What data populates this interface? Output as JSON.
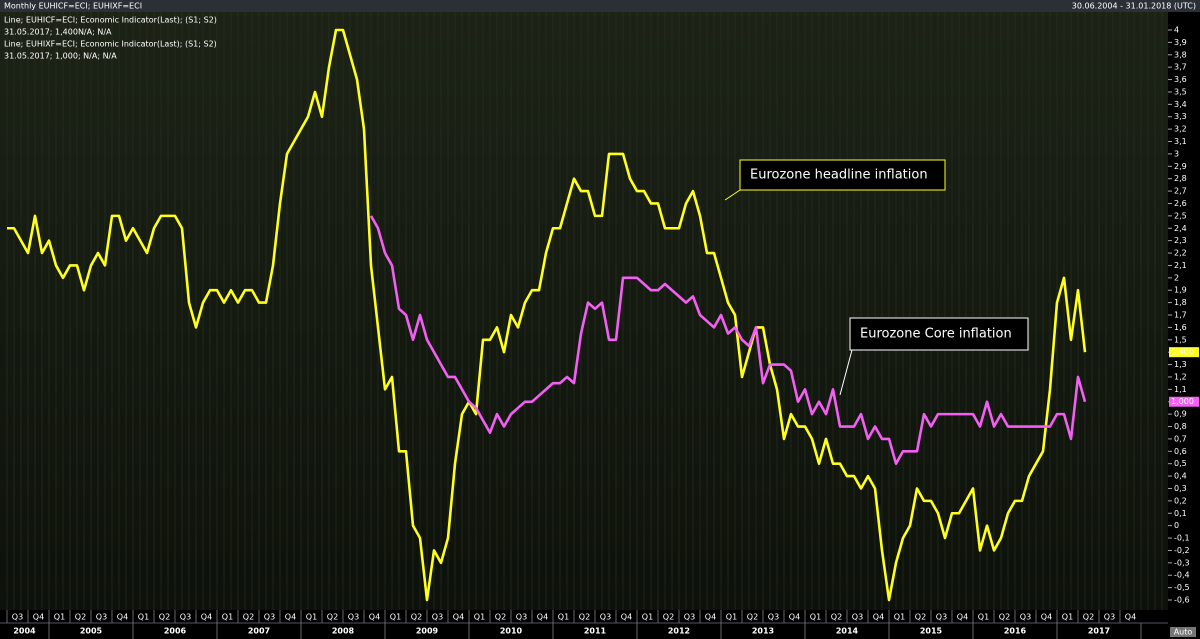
{
  "chart_data": {
    "type": "line",
    "title": "Monthly EUHICF=ECI; EUHIXF=ECI",
    "subtitle": "30.06.2004 - 31.01.2018 (UTC)",
    "x": [
      "2004-07",
      "2004-08",
      "2004-09",
      "2004-10",
      "2004-11",
      "2004-12",
      "2005-01",
      "2005-02",
      "2005-03",
      "2005-04",
      "2005-05",
      "2005-06",
      "2005-07",
      "2005-08",
      "2005-09",
      "2005-10",
      "2005-11",
      "2005-12",
      "2006-01",
      "2006-02",
      "2006-03",
      "2006-04",
      "2006-05",
      "2006-06",
      "2006-07",
      "2006-08",
      "2006-09",
      "2006-10",
      "2006-11",
      "2006-12",
      "2007-01",
      "2007-02",
      "2007-03",
      "2007-04",
      "2007-05",
      "2007-06",
      "2007-07",
      "2007-08",
      "2007-09",
      "2007-10",
      "2007-11",
      "2007-12",
      "2008-01",
      "2008-02",
      "2008-03",
      "2008-04",
      "2008-05",
      "2008-06",
      "2008-07",
      "2008-08",
      "2008-09",
      "2008-10",
      "2008-11",
      "2008-12",
      "2009-01",
      "2009-02",
      "2009-03",
      "2009-04",
      "2009-05",
      "2009-06",
      "2009-07",
      "2009-08",
      "2009-09",
      "2009-10",
      "2009-11",
      "2009-12",
      "2010-01",
      "2010-02",
      "2010-03",
      "2010-04",
      "2010-05",
      "2010-06",
      "2010-07",
      "2010-08",
      "2010-09",
      "2010-10",
      "2010-11",
      "2010-12",
      "2011-01",
      "2011-02",
      "2011-03",
      "2011-04",
      "2011-05",
      "2011-06",
      "2011-07",
      "2011-08",
      "2011-09",
      "2011-10",
      "2011-11",
      "2011-12",
      "2012-01",
      "2012-02",
      "2012-03",
      "2012-04",
      "2012-05",
      "2012-06",
      "2012-07",
      "2012-08",
      "2012-09",
      "2012-10",
      "2012-11",
      "2012-12",
      "2013-01",
      "2013-02",
      "2013-03",
      "2013-04",
      "2013-05",
      "2013-06",
      "2013-07",
      "2013-08",
      "2013-09",
      "2013-10",
      "2013-11",
      "2013-12",
      "2014-01",
      "2014-02",
      "2014-03",
      "2014-04",
      "2014-05",
      "2014-06",
      "2014-07",
      "2014-08",
      "2014-09",
      "2014-10",
      "2014-11",
      "2014-12",
      "2015-01",
      "2015-02",
      "2015-03",
      "2015-04",
      "2015-05",
      "2015-06",
      "2015-07",
      "2015-08",
      "2015-09",
      "2015-10",
      "2015-11",
      "2015-12",
      "2016-01",
      "2016-02",
      "2016-03",
      "2016-04",
      "2016-05",
      "2016-06",
      "2016-07",
      "2016-08",
      "2016-09",
      "2016-10",
      "2016-11",
      "2016-12",
      "2017-01",
      "2017-02",
      "2017-03",
      "2017-04",
      "2017-05"
    ],
    "series": [
      {
        "name": "Line; EUHICF=ECI; Economic Indicator(Last); (S1; S2)",
        "legend_value": "31.05.2017; 1,400N/A; N/A",
        "last_label": "1,400",
        "color": "#ffff1e",
        "values": [
          2.4,
          2.4,
          2.3,
          2.2,
          2.5,
          2.2,
          2.3,
          2.1,
          2.0,
          2.1,
          2.1,
          1.9,
          2.1,
          2.2,
          2.1,
          2.5,
          2.5,
          2.3,
          2.4,
          2.3,
          2.2,
          2.4,
          2.5,
          2.5,
          2.5,
          2.4,
          1.8,
          1.6,
          1.8,
          1.9,
          1.9,
          1.8,
          1.9,
          1.8,
          1.9,
          1.9,
          1.8,
          1.8,
          2.1,
          2.6,
          3.0,
          3.1,
          3.2,
          3.3,
          3.5,
          3.3,
          3.7,
          4.0,
          4.0,
          3.8,
          3.6,
          3.2,
          2.1,
          1.6,
          1.1,
          1.2,
          0.6,
          0.6,
          0.0,
          -0.1,
          -0.6,
          -0.2,
          -0.3,
          -0.1,
          0.5,
          0.9,
          1.0,
          0.9,
          1.5,
          1.5,
          1.6,
          1.4,
          1.7,
          1.6,
          1.8,
          1.9,
          1.9,
          2.2,
          2.4,
          2.4,
          2.6,
          2.8,
          2.7,
          2.7,
          2.5,
          2.5,
          3.0,
          3.0,
          3.0,
          2.8,
          2.7,
          2.7,
          2.6,
          2.6,
          2.4,
          2.4,
          2.4,
          2.6,
          2.7,
          2.5,
          2.2,
          2.2,
          2.0,
          1.8,
          1.7,
          1.2,
          1.4,
          1.6,
          1.6,
          1.3,
          1.1,
          0.7,
          0.9,
          0.8,
          0.8,
          0.7,
          0.5,
          0.7,
          0.5,
          0.5,
          0.4,
          0.4,
          0.3,
          0.4,
          0.3,
          -0.2,
          -0.6,
          -0.3,
          -0.1,
          0.0,
          0.3,
          0.2,
          0.2,
          0.1,
          -0.1,
          0.1,
          0.1,
          0.2,
          0.3,
          -0.2,
          0.0,
          -0.2,
          -0.1,
          0.1,
          0.2,
          0.2,
          0.4,
          0.5,
          0.6,
          1.1,
          1.8,
          2.0,
          1.5,
          1.9,
          1.4
        ]
      },
      {
        "name": "Line; EUHIXF=ECI; Economic Indicator(Last); (S1; S2)",
        "legend_value": "31.05.2017; 1,000; N/A; N/A",
        "last_label": "1,000",
        "color": "#f25ff2",
        "values": [
          null,
          null,
          null,
          null,
          null,
          null,
          null,
          null,
          null,
          null,
          null,
          null,
          null,
          null,
          null,
          null,
          null,
          null,
          null,
          null,
          null,
          null,
          null,
          null,
          null,
          null,
          null,
          null,
          null,
          null,
          null,
          null,
          null,
          null,
          null,
          null,
          null,
          null,
          null,
          null,
          null,
          null,
          null,
          null,
          null,
          null,
          null,
          null,
          null,
          null,
          null,
          null,
          2.5,
          2.4,
          2.2,
          2.1,
          1.75,
          1.7,
          1.5,
          1.7,
          1.5,
          1.4,
          1.3,
          1.2,
          1.2,
          1.1,
          1.0,
          0.95,
          0.85,
          0.75,
          0.9,
          0.8,
          0.9,
          0.95,
          1.0,
          1.0,
          1.05,
          1.1,
          1.15,
          1.15,
          1.2,
          1.15,
          1.55,
          1.8,
          1.75,
          1.8,
          1.5,
          1.5,
          2.0,
          2.0,
          2.0,
          1.95,
          1.9,
          1.9,
          1.95,
          1.9,
          1.85,
          1.8,
          1.85,
          1.7,
          1.65,
          1.6,
          1.7,
          1.55,
          1.6,
          1.5,
          1.45,
          1.6,
          1.15,
          1.3,
          1.3,
          1.3,
          1.25,
          1.0,
          1.1,
          0.9,
          1.0,
          0.9,
          1.1,
          0.8,
          0.8,
          0.8,
          0.9,
          0.7,
          0.8,
          0.7,
          0.7,
          0.5,
          0.6,
          0.6,
          0.6,
          0.9,
          0.8,
          0.9,
          0.9,
          0.9,
          0.9,
          0.9,
          0.9,
          0.8,
          1.0,
          0.8,
          0.9,
          0.8,
          0.8,
          0.8,
          0.8,
          0.8,
          0.8,
          0.8,
          0.9,
          0.9,
          0.7,
          1.2,
          1.0
        ]
      }
    ],
    "ylim": [
      -0.6,
      4
    ],
    "yticks": [
      4,
      {
        "value": 3.9,
        "label": "3,9"
      },
      {
        "value": 3.8,
        "label": "3,8"
      },
      {
        "value": 3.7,
        "label": "3,7"
      },
      {
        "value": 3.6,
        "label": "3,6"
      },
      {
        "value": 3.5,
        "label": "3,5"
      },
      {
        "value": 3.4,
        "label": "3,4"
      },
      {
        "value": 3.3,
        "label": "3,3"
      },
      {
        "value": 3.2,
        "label": "3,2"
      },
      {
        "value": 3.1,
        "label": "3,1"
      },
      3,
      {
        "value": 2.9,
        "label": "2,9"
      },
      {
        "value": 2.8,
        "label": "2,8"
      },
      {
        "value": 2.7,
        "label": "2,7"
      },
      {
        "value": 2.6,
        "label": "2,6"
      },
      {
        "value": 2.5,
        "label": "2,5"
      },
      {
        "value": 2.4,
        "label": "2,4"
      },
      {
        "value": 2.3,
        "label": "2,3"
      },
      {
        "value": 2.2,
        "label": "2,2"
      },
      {
        "value": 2.1,
        "label": "2,1"
      },
      2,
      {
        "value": 1.9,
        "label": "1,9"
      },
      {
        "value": 1.8,
        "label": "1,8"
      },
      {
        "value": 1.7,
        "label": "1,7"
      },
      {
        "value": 1.6,
        "label": "1,6"
      },
      {
        "value": 1.5,
        "label": "1,5"
      },
      {
        "value": 1.4,
        "label": "1,4"
      },
      {
        "value": 1.3,
        "label": "1,3"
      },
      {
        "value": 1.2,
        "label": "1,2"
      },
      {
        "value": 1.1,
        "label": "1,1"
      },
      1,
      {
        "value": 0.9,
        "label": "0,9"
      },
      {
        "value": 0.8,
        "label": "0,8"
      },
      {
        "value": 0.7,
        "label": "0,7"
      },
      {
        "value": 0.6,
        "label": "0,6"
      },
      {
        "value": 0.5,
        "label": "0,5"
      },
      {
        "value": 0.4,
        "label": "0,4"
      },
      {
        "value": 0.3,
        "label": "0,3"
      },
      {
        "value": 0.2,
        "label": "0,2"
      },
      {
        "value": 0.1,
        "label": "0,1"
      },
      0,
      {
        "value": -0.1,
        "label": "-0,1"
      },
      {
        "value": -0.2,
        "label": "-0,2"
      },
      {
        "value": -0.3,
        "label": "-0,3"
      },
      {
        "value": -0.4,
        "label": "-0,4"
      },
      {
        "value": -0.5,
        "label": "-0,5"
      },
      {
        "value": -0.6,
        "label": "-0,6"
      }
    ],
    "xticks": [
      {
        "value": "2004-07",
        "label": "Q3"
      },
      {
        "value": "2004-10",
        "label": "Q4"
      },
      {
        "value": "2005-01",
        "label": "Q1"
      },
      {
        "value": "2005-04",
        "label": "Q2"
      },
      {
        "value": "2005-07",
        "label": "Q3"
      },
      {
        "value": "2005-10",
        "label": "Q4"
      },
      {
        "value": "2006-01",
        "label": "Q1"
      },
      {
        "value": "2006-04",
        "label": "Q2"
      },
      {
        "value": "2006-07",
        "label": "Q3"
      },
      {
        "value": "2006-10",
        "label": "Q4"
      },
      {
        "value": "2007-01",
        "label": "Q1"
      },
      {
        "value": "2007-04",
        "label": "Q2"
      },
      {
        "value": "2007-07",
        "label": "Q3"
      },
      {
        "value": "2007-10",
        "label": "Q4"
      },
      {
        "value": "2008-01",
        "label": "Q1"
      },
      {
        "value": "2008-04",
        "label": "Q2"
      },
      {
        "value": "2008-07",
        "label": "Q3"
      },
      {
        "value": "2008-10",
        "label": "Q4"
      },
      {
        "value": "2009-01",
        "label": "Q1"
      },
      {
        "value": "2009-04",
        "label": "Q2"
      },
      {
        "value": "2009-07",
        "label": "Q3"
      },
      {
        "value": "2009-10",
        "label": "Q4"
      },
      {
        "value": "2010-01",
        "label": "Q1"
      },
      {
        "value": "2010-04",
        "label": "Q2"
      },
      {
        "value": "2010-07",
        "label": "Q3"
      },
      {
        "value": "2010-10",
        "label": "Q4"
      },
      {
        "value": "2011-01",
        "label": "Q1"
      },
      {
        "value": "2011-04",
        "label": "Q2"
      },
      {
        "value": "2011-07",
        "label": "Q3"
      },
      {
        "value": "2011-10",
        "label": "Q4"
      },
      {
        "value": "2012-01",
        "label": "Q1"
      },
      {
        "value": "2012-04",
        "label": "Q2"
      },
      {
        "value": "2012-07",
        "label": "Q3"
      },
      {
        "value": "2012-10",
        "label": "Q4"
      },
      {
        "value": "2013-01",
        "label": "Q1"
      },
      {
        "value": "2013-04",
        "label": "Q2"
      },
      {
        "value": "2013-07",
        "label": "Q3"
      },
      {
        "value": "2013-10",
        "label": "Q4"
      },
      {
        "value": "2014-01",
        "label": "Q1"
      },
      {
        "value": "2014-04",
        "label": "Q2"
      },
      {
        "value": "2014-07",
        "label": "Q3"
      },
      {
        "value": "2014-10",
        "label": "Q4"
      },
      {
        "value": "2015-01",
        "label": "Q1"
      },
      {
        "value": "2015-04",
        "label": "Q2"
      },
      {
        "value": "2015-07",
        "label": "Q3"
      },
      {
        "value": "2015-10",
        "label": "Q4"
      },
      {
        "value": "2016-01",
        "label": "Q1"
      },
      {
        "value": "2016-04",
        "label": "Q2"
      },
      {
        "value": "2016-07",
        "label": "Q3"
      },
      {
        "value": "2016-10",
        "label": "Q4"
      },
      {
        "value": "2017-01",
        "label": "Q1"
      },
      {
        "value": "2017-04",
        "label": "Q2"
      },
      {
        "value": "2017-07",
        "label": "Q3"
      },
      {
        "value": "2017-10",
        "label": "Q4"
      }
    ],
    "year_labels": [
      "2004",
      "2005",
      "2006",
      "2007",
      "2008",
      "2009",
      "2010",
      "2011",
      "2012",
      "2013",
      "2014",
      "2015",
      "2016",
      "2017"
    ],
    "annotations": [
      {
        "text": "Eurozone headline inflation",
        "series": 0,
        "color": "#ffff1e"
      },
      {
        "text": "Eurozone Core inflation",
        "series": 1,
        "color": "#ffffff"
      }
    ],
    "button": "Auto"
  }
}
